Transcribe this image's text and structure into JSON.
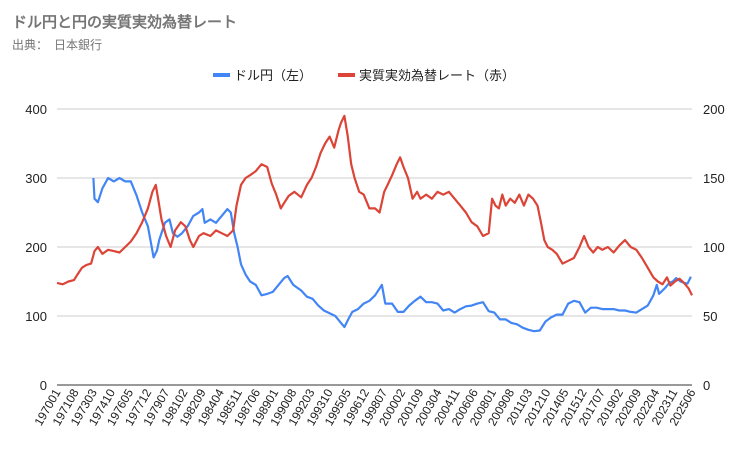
{
  "title": "ドル円と円の実質実効為替レート",
  "subtitle": "出典：　日本銀行",
  "colors": {
    "usdjpy": "#4285f4",
    "reer": "#db4437",
    "grid": "#cccccc",
    "axis": "#333333"
  },
  "chart_data": {
    "type": "line",
    "legend_position": "top",
    "grid": true,
    "left_axis": {
      "ylim": [
        0,
        400
      ],
      "ticks": [
        "0",
        "100",
        "200",
        "300",
        "400"
      ]
    },
    "right_axis": {
      "ylim": [
        0,
        200
      ],
      "ticks": [
        "0",
        "50",
        "100",
        "150",
        "200"
      ]
    },
    "x_tick_labels": [
      "197001",
      "197108",
      "197303",
      "197410",
      "197605",
      "197712",
      "197907",
      "198102",
      "198209",
      "198404",
      "198511",
      "198706",
      "198901",
      "199008",
      "199203",
      "199310",
      "199505",
      "199612",
      "199807",
      "200002",
      "200109",
      "200304",
      "200411",
      "200606",
      "200801",
      "200908",
      "201103",
      "201210",
      "201405",
      "201512",
      "201707",
      "201902",
      "202009",
      "202204",
      "202311",
      "202506"
    ],
    "series": [
      {
        "name": "ドル円（左）",
        "axis": "left",
        "x": [
          1973.2,
          1973.3,
          1973.6,
          1974.0,
          1974.5,
          1975.0,
          1975.5,
          1976.0,
          1976.5,
          1977.0,
          1977.5,
          1978.0,
          1978.5,
          1978.8,
          1979.0,
          1979.5,
          1979.9,
          1980.2,
          1980.6,
          1981.0,
          1981.5,
          1982.0,
          1982.5,
          1982.8,
          1983.0,
          1983.5,
          1984.0,
          1984.5,
          1985.0,
          1985.3,
          1985.6,
          1985.9,
          1986.2,
          1986.6,
          1987.0,
          1987.5,
          1988.0,
          1988.5,
          1989.0,
          1989.5,
          1990.0,
          1990.3,
          1990.8,
          1991.5,
          1992.0,
          1992.5,
          1993.0,
          1993.5,
          1994.0,
          1994.5,
          1995.0,
          1995.3,
          1995.7,
          1996.0,
          1996.5,
          1997.0,
          1997.5,
          1998.0,
          1998.6,
          1998.9,
          1999.5,
          2000.0,
          2000.5,
          2001.0,
          2001.5,
          2002.0,
          2002.5,
          2003.0,
          2003.5,
          2004.0,
          2004.5,
          2005.0,
          2005.5,
          2006.0,
          2006.5,
          2007.0,
          2007.5,
          2008.0,
          2008.5,
          2009.0,
          2009.5,
          2010.0,
          2010.5,
          2011.0,
          2011.5,
          2012.0,
          2012.5,
          2013.0,
          2013.5,
          2014.0,
          2014.5,
          2015.0,
          2015.5,
          2016.0,
          2016.5,
          2017.0,
          2017.5,
          2018.0,
          2018.5,
          2019.0,
          2019.5,
          2020.0,
          2020.5,
          2021.0,
          2021.5,
          2022.0,
          2022.5,
          2022.8,
          2023.0,
          2023.5,
          2023.9,
          2024.2,
          2024.5,
          2024.9,
          2025.2,
          2025.5,
          2025.8
        ],
        "values": [
          300,
          270,
          265,
          285,
          300,
          295,
          300,
          295,
          295,
          275,
          250,
          230,
          185,
          195,
          210,
          235,
          240,
          220,
          215,
          220,
          230,
          245,
          250,
          255,
          235,
          240,
          235,
          245,
          255,
          250,
          220,
          200,
          175,
          160,
          150,
          145,
          130,
          132,
          135,
          145,
          155,
          158,
          145,
          137,
          128,
          125,
          115,
          108,
          104,
          100,
          90,
          84,
          97,
          106,
          110,
          118,
          122,
          130,
          145,
          118,
          118,
          106,
          106,
          115,
          122,
          128,
          120,
          120,
          118,
          108,
          110,
          105,
          110,
          114,
          115,
          118,
          120,
          107,
          105,
          95,
          95,
          90,
          88,
          83,
          80,
          78,
          79,
          92,
          98,
          102,
          102,
          118,
          122,
          120,
          105,
          112,
          112,
          110,
          110,
          110,
          108,
          108,
          106,
          105,
          110,
          115,
          130,
          145,
          132,
          140,
          148,
          150,
          155,
          150,
          148,
          147,
          157
        ]
      },
      {
        "name": "実質実効為替レート（赤）",
        "axis": "right",
        "x": [
          1970.0,
          1970.5,
          1971.0,
          1971.5,
          1971.8,
          1972.2,
          1972.6,
          1973.0,
          1973.3,
          1973.6,
          1974.0,
          1974.5,
          1975.0,
          1975.5,
          1976.0,
          1976.5,
          1977.0,
          1977.5,
          1978.0,
          1978.4,
          1978.7,
          1978.9,
          1979.2,
          1979.6,
          1980.0,
          1980.4,
          1980.9,
          1981.3,
          1981.7,
          1982.0,
          1982.5,
          1982.9,
          1983.5,
          1984.0,
          1984.5,
          1985.0,
          1985.5,
          1985.8,
          1986.2,
          1986.6,
          1987.0,
          1987.5,
          1988.0,
          1988.5,
          1988.9,
          1989.3,
          1989.7,
          1990.0,
          1990.4,
          1990.9,
          1991.5,
          1992.0,
          1992.4,
          1992.8,
          1993.2,
          1993.6,
          1994.0,
          1994.4,
          1994.8,
          1995.0,
          1995.3,
          1995.6,
          1995.9,
          1996.2,
          1996.6,
          1997.0,
          1997.5,
          1998.0,
          1998.4,
          1998.8,
          1999.1,
          1999.5,
          1999.9,
          2000.2,
          2000.5,
          2000.9,
          2001.3,
          2001.7,
          2002.0,
          2002.5,
          2003.0,
          2003.5,
          2004.0,
          2004.5,
          2005.0,
          2005.5,
          2006.0,
          2006.5,
          2007.0,
          2007.5,
          2008.0,
          2008.3,
          2008.6,
          2008.9,
          2009.2,
          2009.5,
          2009.9,
          2010.3,
          2010.7,
          2011.1,
          2011.5,
          2011.9,
          2012.3,
          2012.6,
          2012.9,
          2013.2,
          2013.6,
          2014.0,
          2014.5,
          2015.0,
          2015.5,
          2016.0,
          2016.4,
          2016.8,
          2017.2,
          2017.6,
          2018.0,
          2018.5,
          2019.0,
          2019.5,
          2020.0,
          2020.5,
          2021.0,
          2021.5,
          2022.0,
          2022.5,
          2022.9,
          2023.3,
          2023.7,
          2024.0,
          2024.4,
          2024.8,
          2025.2,
          2025.6,
          2025.9
        ],
        "values": [
          74,
          73,
          75,
          76,
          80,
          85,
          87,
          88,
          97,
          100,
          95,
          98,
          97,
          96,
          100,
          104,
          110,
          118,
          128,
          140,
          145,
          135,
          120,
          108,
          100,
          112,
          118,
          115,
          105,
          100,
          108,
          110,
          108,
          112,
          110,
          108,
          112,
          130,
          145,
          150,
          152,
          155,
          160,
          158,
          146,
          138,
          128,
          132,
          137,
          140,
          136,
          145,
          150,
          158,
          168,
          175,
          180,
          172,
          185,
          190,
          195,
          180,
          160,
          150,
          140,
          138,
          128,
          128,
          125,
          140,
          145,
          152,
          160,
          165,
          158,
          150,
          135,
          140,
          135,
          138,
          135,
          140,
          138,
          140,
          135,
          130,
          125,
          118,
          115,
          108,
          110,
          135,
          130,
          128,
          138,
          130,
          135,
          132,
          138,
          130,
          138,
          135,
          130,
          118,
          105,
          100,
          98,
          95,
          88,
          90,
          92,
          100,
          108,
          100,
          96,
          100,
          98,
          100,
          96,
          101,
          105,
          100,
          98,
          92,
          85,
          78,
          75,
          73,
          78,
          72,
          75,
          77,
          74,
          70,
          65
        ]
      }
    ]
  }
}
